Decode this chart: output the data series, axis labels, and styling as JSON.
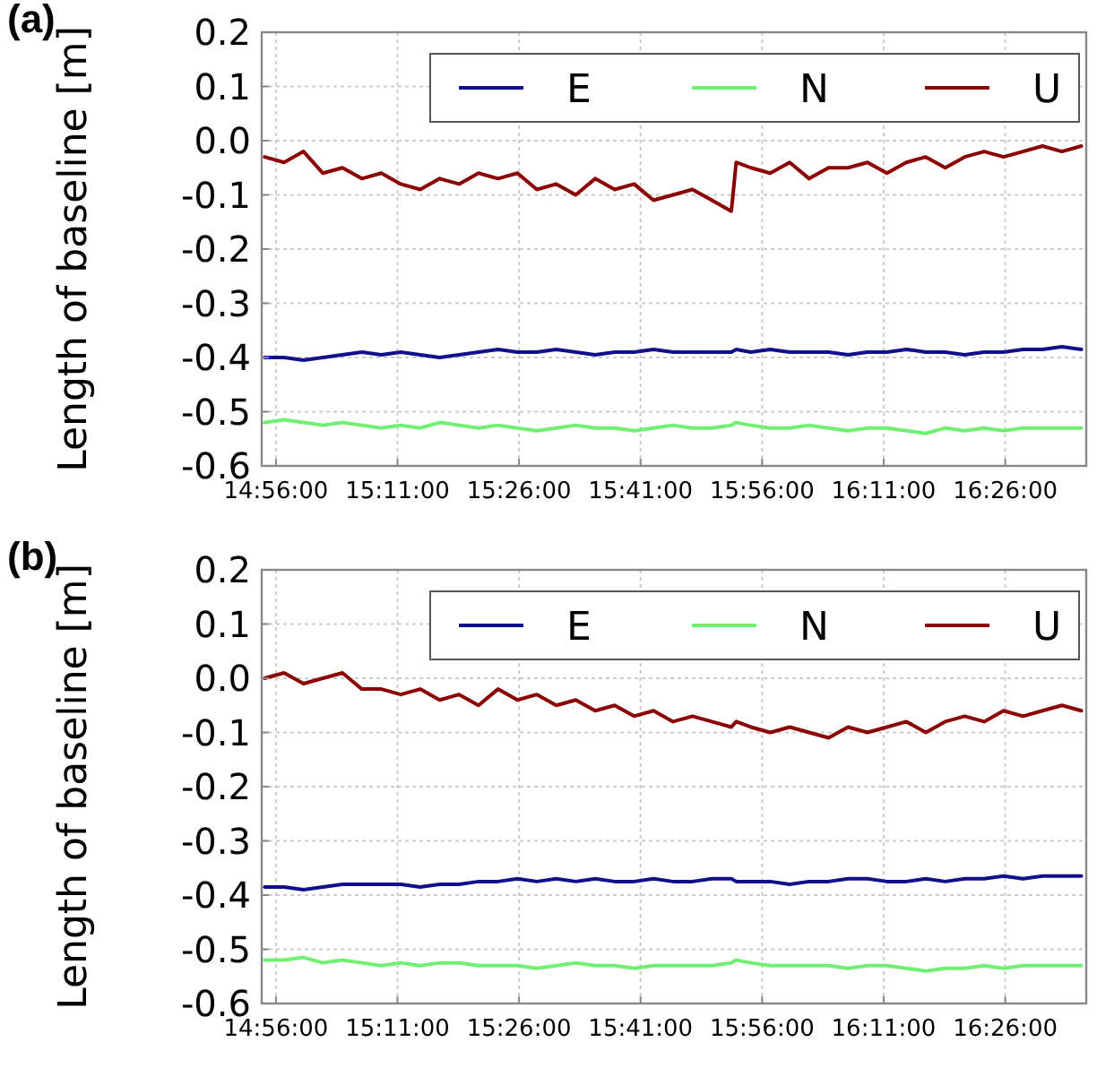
{
  "chart_data": [
    {
      "type": "line",
      "title": "(a)",
      "ylabel": "Length of baseline [m]",
      "xlim": [
        14.904,
        16.6
      ],
      "ylim": [
        -0.6,
        0.2
      ],
      "xticks": [
        {
          "value": 14.93333,
          "label": "14:56:00"
        },
        {
          "value": 15.18333,
          "label": "15:11:00"
        },
        {
          "value": 15.43333,
          "label": "15:26:00"
        },
        {
          "value": 15.68333,
          "label": "15:41:00"
        },
        {
          "value": 15.93333,
          "label": "15:56:00"
        },
        {
          "value": 16.18333,
          "label": "16:11:00"
        },
        {
          "value": 16.43333,
          "label": "16:26:00"
        }
      ],
      "yticks": [
        {
          "value": -0.6,
          "label": "-0.6"
        },
        {
          "value": -0.5,
          "label": "-0.5"
        },
        {
          "value": -0.4,
          "label": "-0.4"
        },
        {
          "value": -0.3,
          "label": "-0.3"
        },
        {
          "value": -0.2,
          "label": "-0.2"
        },
        {
          "value": -0.1,
          "label": "-0.1"
        },
        {
          "value": 0,
          "label": "0.0"
        },
        {
          "value": 0.1,
          "label": "0.1"
        },
        {
          "value": 0.2,
          "label": "0.2"
        }
      ],
      "grid": true,
      "legend": "top right",
      "x": [
        14.91,
        14.95,
        14.99,
        15.03,
        15.07,
        15.11,
        15.15,
        15.19,
        15.23,
        15.27,
        15.31,
        15.35,
        15.39,
        15.43,
        15.47,
        15.51,
        15.55,
        15.59,
        15.63,
        15.67,
        15.71,
        15.75,
        15.79,
        15.83,
        15.87,
        15.88,
        15.91,
        15.95,
        15.99,
        16.03,
        16.07,
        16.11,
        16.15,
        16.19,
        16.23,
        16.27,
        16.31,
        16.35,
        16.39,
        16.43,
        16.47,
        16.51,
        16.55,
        16.59
      ],
      "series": [
        {
          "name": "E",
          "color": "#10108c",
          "values": [
            -0.4,
            -0.4,
            -0.405,
            -0.4,
            -0.395,
            -0.39,
            -0.395,
            -0.39,
            -0.395,
            -0.4,
            -0.395,
            -0.39,
            -0.385,
            -0.39,
            -0.39,
            -0.385,
            -0.39,
            -0.395,
            -0.39,
            -0.39,
            -0.385,
            -0.39,
            -0.39,
            -0.39,
            -0.39,
            -0.385,
            -0.39,
            -0.385,
            -0.39,
            -0.39,
            -0.39,
            -0.395,
            -0.39,
            -0.39,
            -0.385,
            -0.39,
            -0.39,
            -0.395,
            -0.39,
            -0.39,
            -0.385,
            -0.385,
            -0.38,
            -0.385
          ]
        },
        {
          "name": "N",
          "color": "#70f070",
          "values": [
            -0.52,
            -0.515,
            -0.52,
            -0.525,
            -0.52,
            -0.525,
            -0.53,
            -0.525,
            -0.53,
            -0.52,
            -0.525,
            -0.53,
            -0.525,
            -0.53,
            -0.535,
            -0.53,
            -0.525,
            -0.53,
            -0.53,
            -0.535,
            -0.53,
            -0.525,
            -0.53,
            -0.53,
            -0.525,
            -0.52,
            -0.525,
            -0.53,
            -0.53,
            -0.525,
            -0.53,
            -0.535,
            -0.53,
            -0.53,
            -0.535,
            -0.54,
            -0.53,
            -0.535,
            -0.53,
            -0.535,
            -0.53,
            -0.53,
            -0.53,
            -0.53
          ]
        },
        {
          "name": "U",
          "color": "#8b0000",
          "values": [
            -0.03,
            -0.04,
            -0.02,
            -0.06,
            -0.05,
            -0.07,
            -0.06,
            -0.08,
            -0.09,
            -0.07,
            -0.08,
            -0.06,
            -0.07,
            -0.06,
            -0.09,
            -0.08,
            -0.1,
            -0.07,
            -0.09,
            -0.08,
            -0.11,
            -0.1,
            -0.09,
            -0.11,
            -0.13,
            -0.04,
            -0.05,
            -0.06,
            -0.04,
            -0.07,
            -0.05,
            -0.05,
            -0.04,
            -0.06,
            -0.04,
            -0.03,
            -0.05,
            -0.03,
            -0.02,
            -0.03,
            -0.02,
            -0.01,
            -0.02,
            -0.01
          ]
        }
      ]
    },
    {
      "type": "line",
      "title": "(b)",
      "ylabel": "Length of baseline [m]",
      "xlim": [
        14.904,
        16.6
      ],
      "ylim": [
        -0.6,
        0.2
      ],
      "xticks": [
        {
          "value": 14.93333,
          "label": "14:56:00"
        },
        {
          "value": 15.18333,
          "label": "15:11:00"
        },
        {
          "value": 15.43333,
          "label": "15:26:00"
        },
        {
          "value": 15.68333,
          "label": "15:41:00"
        },
        {
          "value": 15.93333,
          "label": "15:56:00"
        },
        {
          "value": 16.18333,
          "label": "16:11:00"
        },
        {
          "value": 16.43333,
          "label": "16:26:00"
        }
      ],
      "yticks": [
        {
          "value": -0.6,
          "label": "-0.6"
        },
        {
          "value": -0.5,
          "label": "-0.5"
        },
        {
          "value": -0.4,
          "label": "-0.4"
        },
        {
          "value": -0.3,
          "label": "-0.3"
        },
        {
          "value": -0.2,
          "label": "-0.2"
        },
        {
          "value": -0.1,
          "label": "-0.1"
        },
        {
          "value": 0,
          "label": "0.0"
        },
        {
          "value": 0.1,
          "label": "0.1"
        },
        {
          "value": 0.2,
          "label": "0.2"
        }
      ],
      "grid": true,
      "legend": "top right",
      "x": [
        14.91,
        14.95,
        14.99,
        15.03,
        15.07,
        15.11,
        15.15,
        15.19,
        15.23,
        15.27,
        15.31,
        15.35,
        15.39,
        15.43,
        15.47,
        15.51,
        15.55,
        15.59,
        15.63,
        15.67,
        15.71,
        15.75,
        15.79,
        15.83,
        15.87,
        15.88,
        15.91,
        15.95,
        15.99,
        16.03,
        16.07,
        16.11,
        16.15,
        16.19,
        16.23,
        16.27,
        16.31,
        16.35,
        16.39,
        16.43,
        16.47,
        16.51,
        16.55,
        16.59
      ],
      "series": [
        {
          "name": "E",
          "color": "#10108c",
          "values": [
            -0.385,
            -0.385,
            -0.39,
            -0.385,
            -0.38,
            -0.38,
            -0.38,
            -0.38,
            -0.385,
            -0.38,
            -0.38,
            -0.375,
            -0.375,
            -0.37,
            -0.375,
            -0.37,
            -0.375,
            -0.37,
            -0.375,
            -0.375,
            -0.37,
            -0.375,
            -0.375,
            -0.37,
            -0.37,
            -0.375,
            -0.375,
            -0.375,
            -0.38,
            -0.375,
            -0.375,
            -0.37,
            -0.37,
            -0.375,
            -0.375,
            -0.37,
            -0.375,
            -0.37,
            -0.37,
            -0.365,
            -0.37,
            -0.365,
            -0.365,
            -0.365
          ]
        },
        {
          "name": "N",
          "color": "#70f070",
          "values": [
            -0.52,
            -0.52,
            -0.515,
            -0.525,
            -0.52,
            -0.525,
            -0.53,
            -0.525,
            -0.53,
            -0.525,
            -0.525,
            -0.53,
            -0.53,
            -0.53,
            -0.535,
            -0.53,
            -0.525,
            -0.53,
            -0.53,
            -0.535,
            -0.53,
            -0.53,
            -0.53,
            -0.53,
            -0.525,
            -0.52,
            -0.525,
            -0.53,
            -0.53,
            -0.53,
            -0.53,
            -0.535,
            -0.53,
            -0.53,
            -0.535,
            -0.54,
            -0.535,
            -0.535,
            -0.53,
            -0.535,
            -0.53,
            -0.53,
            -0.53,
            -0.53
          ]
        },
        {
          "name": "U",
          "color": "#8b0000",
          "values": [
            0.0,
            0.01,
            -0.01,
            0.0,
            0.01,
            -0.02,
            -0.02,
            -0.03,
            -0.02,
            -0.04,
            -0.03,
            -0.05,
            -0.02,
            -0.04,
            -0.03,
            -0.05,
            -0.04,
            -0.06,
            -0.05,
            -0.07,
            -0.06,
            -0.08,
            -0.07,
            -0.08,
            -0.09,
            -0.08,
            -0.09,
            -0.1,
            -0.09,
            -0.1,
            -0.11,
            -0.09,
            -0.1,
            -0.09,
            -0.08,
            -0.1,
            -0.08,
            -0.07,
            -0.08,
            -0.06,
            -0.07,
            -0.06,
            -0.05,
            -0.06
          ]
        }
      ]
    }
  ]
}
